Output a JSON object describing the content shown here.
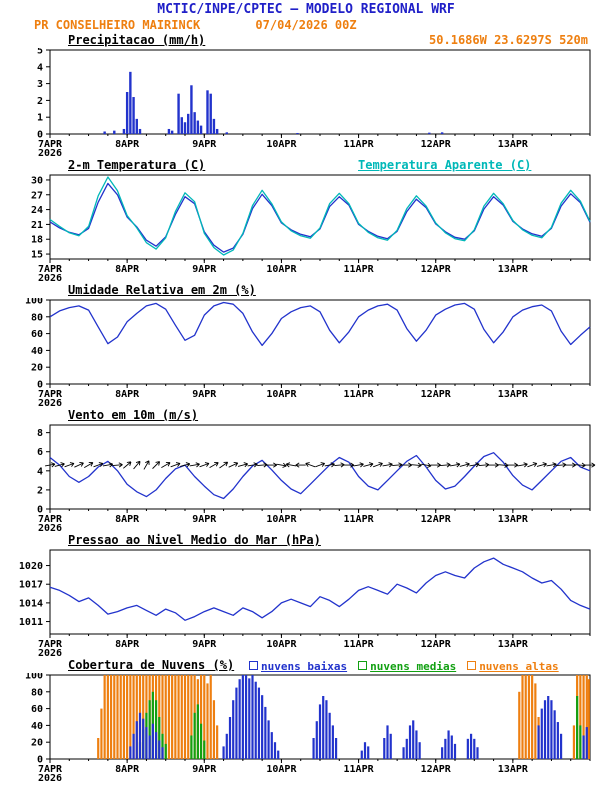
{
  "header": {
    "title": "MCTIC/INPE/CPTEC — MODELO REGIONAL WRF",
    "station": "PR CONSELHEIRO MAIRINCK",
    "run": "07/04/2026 00Z",
    "coords": "50.1686W 23.6297S 520m"
  },
  "colors": {
    "title_blue": "#2020c8",
    "orange": "#ee7f10",
    "line_blue": "#2233cc",
    "cyan": "#00b8b8",
    "green": "#11a011",
    "black": "#000000"
  },
  "x_axis": {
    "labels": [
      "7APR",
      "8APR",
      "9APR",
      "10APR",
      "11APR",
      "12APR",
      "13APR"
    ],
    "year": "2026",
    "tick_hours": [
      0,
      24,
      48,
      72,
      96,
      120,
      144
    ],
    "minor_step_hours": 6,
    "total_hours": 168,
    "x_unit": "hours from 07APR2026 00Z"
  },
  "chart_data": [
    {
      "type": "bar",
      "title": "Precipitacao (mm/h)",
      "ylim": [
        0,
        5
      ],
      "yticks": [
        0,
        1,
        2,
        3,
        4,
        5
      ],
      "bar_color": "#2233cc",
      "points": [
        [
          17,
          0.15
        ],
        [
          20,
          0.2
        ],
        [
          23,
          0.3
        ],
        [
          24,
          2.5
        ],
        [
          25,
          3.7
        ],
        [
          26,
          2.2
        ],
        [
          27,
          0.9
        ],
        [
          28,
          0.3
        ],
        [
          37,
          0.3
        ],
        [
          38,
          0.2
        ],
        [
          40,
          2.4
        ],
        [
          41,
          1.0
        ],
        [
          42,
          0.7
        ],
        [
          43,
          1.2
        ],
        [
          44,
          2.9
        ],
        [
          45,
          1.3
        ],
        [
          46,
          0.8
        ],
        [
          47,
          0.5
        ],
        [
          49,
          2.6
        ],
        [
          50,
          2.4
        ],
        [
          51,
          0.9
        ],
        [
          52,
          0.3
        ],
        [
          55,
          0.1
        ],
        [
          77,
          0.06
        ],
        [
          118,
          0.08
        ],
        [
          122,
          0.1
        ]
      ]
    },
    {
      "type": "line",
      "title": "2-m Temperatura (C)",
      "ylim": [
        14,
        31
      ],
      "yticks": [
        15,
        18,
        21,
        24,
        27,
        30
      ],
      "step_hours": 3,
      "legend": [
        {
          "label": "Temperatura Aparente (C)",
          "color": "#00b8b8"
        }
      ],
      "series": [
        {
          "name": "2-m Temperatura (C)",
          "color": "#2233cc",
          "values": [
            21.5,
            20.3,
            19.4,
            18.9,
            20.2,
            25.5,
            29.3,
            27.0,
            22.5,
            20.5,
            17.8,
            16.6,
            18.5,
            23.0,
            26.6,
            25.2,
            19.5,
            16.8,
            15.4,
            16.2,
            19.0,
            24.2,
            27.1,
            24.8,
            21.3,
            19.9,
            19.0,
            18.5,
            20.1,
            24.6,
            26.6,
            24.9,
            21.0,
            19.6,
            18.6,
            18.1,
            19.6,
            23.6,
            26.1,
            24.4,
            21.1,
            19.5,
            18.4,
            18.0,
            19.7,
            24.1,
            26.6,
            24.9,
            21.6,
            20.1,
            19.1,
            18.6,
            20.2,
            24.7,
            27.2,
            25.4,
            21.4
          ]
        },
        {
          "name": "Temperatura Aparente (C)",
          "color": "#00b8b8",
          "values": [
            22.0,
            20.6,
            19.3,
            18.7,
            20.6,
            26.8,
            30.6,
            27.8,
            22.8,
            20.3,
            17.3,
            16.0,
            18.3,
            23.6,
            27.4,
            25.6,
            19.2,
            16.3,
            14.8,
            15.8,
            19.2,
            24.8,
            27.9,
            25.2,
            21.5,
            19.7,
            18.7,
            18.2,
            20.3,
            25.2,
            27.3,
            25.2,
            21.2,
            19.4,
            18.3,
            17.8,
            19.8,
            24.2,
            26.8,
            24.7,
            21.3,
            19.3,
            18.1,
            17.7,
            19.9,
            24.7,
            27.3,
            25.2,
            21.8,
            19.9,
            18.8,
            18.3,
            20.4,
            25.3,
            27.9,
            25.7,
            21.6
          ]
        }
      ]
    },
    {
      "type": "line",
      "title": "Umidade Relativa em 2m (%)",
      "ylim": [
        0,
        100
      ],
      "yticks": [
        0,
        20,
        40,
        60,
        80,
        100
      ],
      "step_hours": 3,
      "series": [
        {
          "name": "Umidade Relativa 2m",
          "color": "#2233cc",
          "values": [
            80,
            87,
            91,
            93,
            88,
            68,
            48,
            56,
            74,
            84,
            93,
            96,
            89,
            70,
            52,
            58,
            82,
            93,
            97,
            95,
            84,
            62,
            46,
            60,
            78,
            86,
            91,
            93,
            86,
            64,
            49,
            62,
            80,
            88,
            93,
            95,
            88,
            66,
            51,
            64,
            82,
            89,
            94,
            96,
            89,
            65,
            49,
            62,
            80,
            88,
            92,
            94,
            87,
            63,
            47,
            58,
            68
          ]
        }
      ]
    },
    {
      "type": "line",
      "title": "Vento em 10m (m/s)",
      "ylim": [
        0,
        8.8
      ],
      "yticks": [
        0,
        2,
        4,
        6,
        8
      ],
      "step_hours": 3,
      "series": [
        {
          "name": "Velocidade do vento 10m",
          "color": "#2233cc",
          "values": [
            5.4,
            4.6,
            3.4,
            2.8,
            3.4,
            4.4,
            5.0,
            4.0,
            2.6,
            1.8,
            1.3,
            2.0,
            3.2,
            4.2,
            4.6,
            3.4,
            2.4,
            1.5,
            1.1,
            2.1,
            3.4,
            4.5,
            5.1,
            4.1,
            3.0,
            2.1,
            1.6,
            2.6,
            3.6,
            4.6,
            5.4,
            4.9,
            3.4,
            2.4,
            2.0,
            3.0,
            4.0,
            5.0,
            5.6,
            4.4,
            3.0,
            2.1,
            2.4,
            3.4,
            4.5,
            5.5,
            5.9,
            4.9,
            3.5,
            2.5,
            2.0,
            3.0,
            4.0,
            5.0,
            5.4,
            4.4,
            4.0
          ]
        }
      ],
      "barbs": {
        "y_value": 4.6,
        "step_hours": 3,
        "angles_deg": [
          10,
          15,
          20,
          25,
          30,
          20,
          10,
          5,
          40,
          50,
          60,
          45,
          30,
          20,
          15,
          10,
          20,
          30,
          35,
          25,
          15,
          10,
          5,
          0,
          -10,
          170,
          180,
          160,
          20,
          10,
          5,
          0,
          10,
          15,
          20,
          10,
          5,
          0,
          -5,
          -10,
          0,
          5,
          10,
          15,
          10,
          5,
          0,
          -5,
          0,
          10,
          20,
          15,
          10,
          5,
          0,
          -5,
          0
        ]
      }
    },
    {
      "type": "line",
      "title": "Pressao ao Nivel Medio do Mar (hPa)",
      "ylim": [
        1009,
        1022.5
      ],
      "yticks": [
        1011,
        1014,
        1017,
        1020
      ],
      "step_hours": 3,
      "series": [
        {
          "name": "Pressao ao nivel medio do mar",
          "color": "#2233cc",
          "values": [
            1016.5,
            1016.0,
            1015.2,
            1014.2,
            1014.8,
            1013.6,
            1012.2,
            1012.6,
            1013.2,
            1013.6,
            1012.8,
            1012.0,
            1013.0,
            1012.4,
            1011.2,
            1011.8,
            1012.6,
            1013.2,
            1012.6,
            1012.0,
            1013.2,
            1012.6,
            1011.6,
            1012.6,
            1014.0,
            1014.6,
            1014.0,
            1013.4,
            1015.0,
            1014.4,
            1013.4,
            1014.6,
            1016.0,
            1016.6,
            1016.0,
            1015.4,
            1017.0,
            1016.4,
            1015.6,
            1017.2,
            1018.4,
            1019.0,
            1018.4,
            1018.0,
            1019.6,
            1020.6,
            1021.2,
            1020.2,
            1019.6,
            1019.0,
            1018.0,
            1017.2,
            1017.6,
            1016.2,
            1014.4,
            1013.6,
            1013.0
          ]
        }
      ]
    },
    {
      "type": "bar-multi",
      "title": "Cobertura de Nuvens (%)",
      "ylim": [
        0,
        100
      ],
      "yticks": [
        0,
        20,
        40,
        60,
        80,
        100
      ],
      "legend": [
        {
          "label": "nuvens baixas",
          "color": "#2233cc"
        },
        {
          "label": "nuvens medias",
          "color": "#11a011"
        },
        {
          "label": "nuvens altas",
          "color": "#ee7f10"
        }
      ],
      "series": [
        {
          "name": "nuvens altas",
          "color": "#ee7f10",
          "points": [
            [
              15,
              25
            ],
            [
              16,
              60
            ],
            [
              17,
              100
            ],
            [
              18,
              100
            ],
            [
              19,
              100
            ],
            [
              20,
              100
            ],
            [
              21,
              100
            ],
            [
              22,
              100
            ],
            [
              23,
              100
            ],
            [
              24,
              100
            ],
            [
              25,
              100
            ],
            [
              26,
              100
            ],
            [
              27,
              100
            ],
            [
              28,
              100
            ],
            [
              29,
              100
            ],
            [
              30,
              100
            ],
            [
              31,
              100
            ],
            [
              32,
              100
            ],
            [
              33,
              100
            ],
            [
              34,
              100
            ],
            [
              35,
              100
            ],
            [
              36,
              100
            ],
            [
              37,
              100
            ],
            [
              38,
              100
            ],
            [
              39,
              100
            ],
            [
              40,
              100
            ],
            [
              41,
              100
            ],
            [
              42,
              100
            ],
            [
              43,
              100
            ],
            [
              44,
              100
            ],
            [
              45,
              100
            ],
            [
              46,
              95
            ],
            [
              47,
              100
            ],
            [
              48,
              100
            ],
            [
              49,
              90
            ],
            [
              50,
              100
            ],
            [
              51,
              70
            ],
            [
              52,
              40
            ],
            [
              146,
              80
            ],
            [
              147,
              100
            ],
            [
              148,
              100
            ],
            [
              149,
              100
            ],
            [
              150,
              100
            ],
            [
              151,
              90
            ],
            [
              152,
              50
            ],
            [
              163,
              40
            ],
            [
              164,
              100
            ],
            [
              165,
              100
            ],
            [
              166,
              100
            ],
            [
              167,
              100
            ],
            [
              168,
              95
            ]
          ]
        },
        {
          "name": "nuvens medias",
          "color": "#11a011",
          "points": [
            [
              28,
              20
            ],
            [
              29,
              35
            ],
            [
              30,
              55
            ],
            [
              31,
              70
            ],
            [
              32,
              80
            ],
            [
              33,
              70
            ],
            [
              34,
              50
            ],
            [
              35,
              30
            ],
            [
              36,
              18
            ],
            [
              44,
              28
            ],
            [
              45,
              55
            ],
            [
              46,
              65
            ],
            [
              47,
              42
            ],
            [
              48,
              22
            ],
            [
              164,
              75
            ],
            [
              165,
              40
            ]
          ]
        },
        {
          "name": "nuvens baixas",
          "color": "#2233cc",
          "points": [
            [
              25,
              15
            ],
            [
              26,
              30
            ],
            [
              27,
              45
            ],
            [
              28,
              55
            ],
            [
              29,
              48
            ],
            [
              30,
              38
            ],
            [
              31,
              28
            ],
            [
              32,
              42
            ],
            [
              33,
              32
            ],
            [
              34,
              22
            ],
            [
              35,
              14
            ],
            [
              54,
              15
            ],
            [
              55,
              30
            ],
            [
              56,
              50
            ],
            [
              57,
              70
            ],
            [
              58,
              85
            ],
            [
              59,
              95
            ],
            [
              60,
              100
            ],
            [
              61,
              100
            ],
            [
              62,
              96
            ],
            [
              63,
              100
            ],
            [
              64,
              92
            ],
            [
              65,
              85
            ],
            [
              66,
              76
            ],
            [
              67,
              62
            ],
            [
              68,
              46
            ],
            [
              69,
              32
            ],
            [
              70,
              20
            ],
            [
              71,
              10
            ],
            [
              82,
              25
            ],
            [
              83,
              45
            ],
            [
              84,
              65
            ],
            [
              85,
              75
            ],
            [
              86,
              70
            ],
            [
              87,
              55
            ],
            [
              88,
              40
            ],
            [
              89,
              25
            ],
            [
              97,
              10
            ],
            [
              98,
              20
            ],
            [
              99,
              15
            ],
            [
              104,
              25
            ],
            [
              105,
              40
            ],
            [
              106,
              30
            ],
            [
              110,
              14
            ],
            [
              111,
              24
            ],
            [
              112,
              40
            ],
            [
              113,
              46
            ],
            [
              114,
              34
            ],
            [
              115,
              20
            ],
            [
              122,
              14
            ],
            [
              123,
              24
            ],
            [
              124,
              34
            ],
            [
              125,
              28
            ],
            [
              126,
              18
            ],
            [
              130,
              24
            ],
            [
              131,
              30
            ],
            [
              132,
              24
            ],
            [
              133,
              14
            ],
            [
              152,
              40
            ],
            [
              153,
              60
            ],
            [
              154,
              70
            ],
            [
              155,
              75
            ],
            [
              156,
              70
            ],
            [
              157,
              58
            ],
            [
              158,
              44
            ],
            [
              159,
              30
            ],
            [
              166,
              28
            ],
            [
              167,
              38
            ]
          ]
        }
      ]
    }
  ]
}
